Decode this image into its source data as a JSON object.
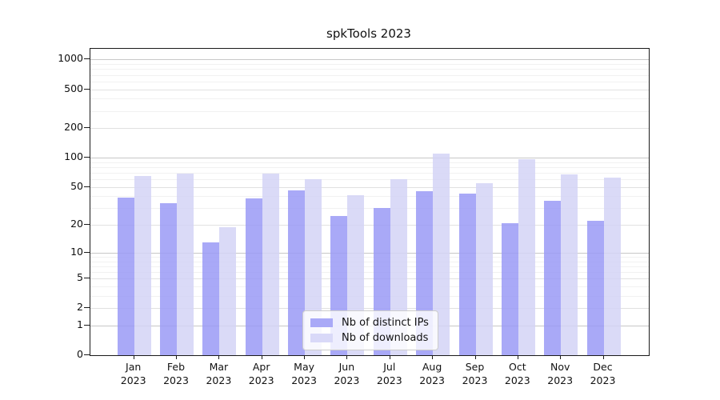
{
  "chart_data": {
    "type": "bar",
    "title": "spkTools 2023",
    "categories": [
      "Jan 2023",
      "Feb 2023",
      "Mar 2023",
      "Apr 2023",
      "May 2023",
      "Jun 2023",
      "Jul 2023",
      "Aug 2023",
      "Sep 2023",
      "Oct 2023",
      "Nov 2023",
      "Dec 2023"
    ],
    "series": [
      {
        "name": "Nb of distinct IPs",
        "color": "#a9a9f7",
        "bar_fill": "rgba(154,154,246,0.85)",
        "values": [
          39,
          34,
          13,
          38,
          46,
          25,
          30,
          45,
          43,
          21,
          36,
          22
        ]
      },
      {
        "name": "Nb of downloads",
        "color": "#d9d9f8",
        "bar_fill": "rgba(211,211,246,0.85)",
        "values": [
          65,
          69,
          19,
          69,
          60,
          41,
          60,
          110,
          55,
          96,
          67,
          63
        ]
      }
    ],
    "yscale": "symlog",
    "ylabel": "",
    "xlabel": "",
    "yticks": [
      0,
      1,
      2,
      5,
      10,
      20,
      50,
      100,
      200,
      500,
      1000
    ],
    "ytick_tiers": {
      "major": [
        1,
        10,
        100,
        1000
      ],
      "mid": [
        2,
        5,
        20,
        50,
        200,
        500
      ],
      "minor": [
        3,
        4,
        6,
        7,
        8,
        9,
        30,
        40,
        60,
        70,
        80,
        90,
        300,
        400,
        600,
        700,
        800,
        900
      ]
    },
    "ylim": [
      0,
      1286
    ],
    "grid": true,
    "legend_position": "lower center"
  }
}
